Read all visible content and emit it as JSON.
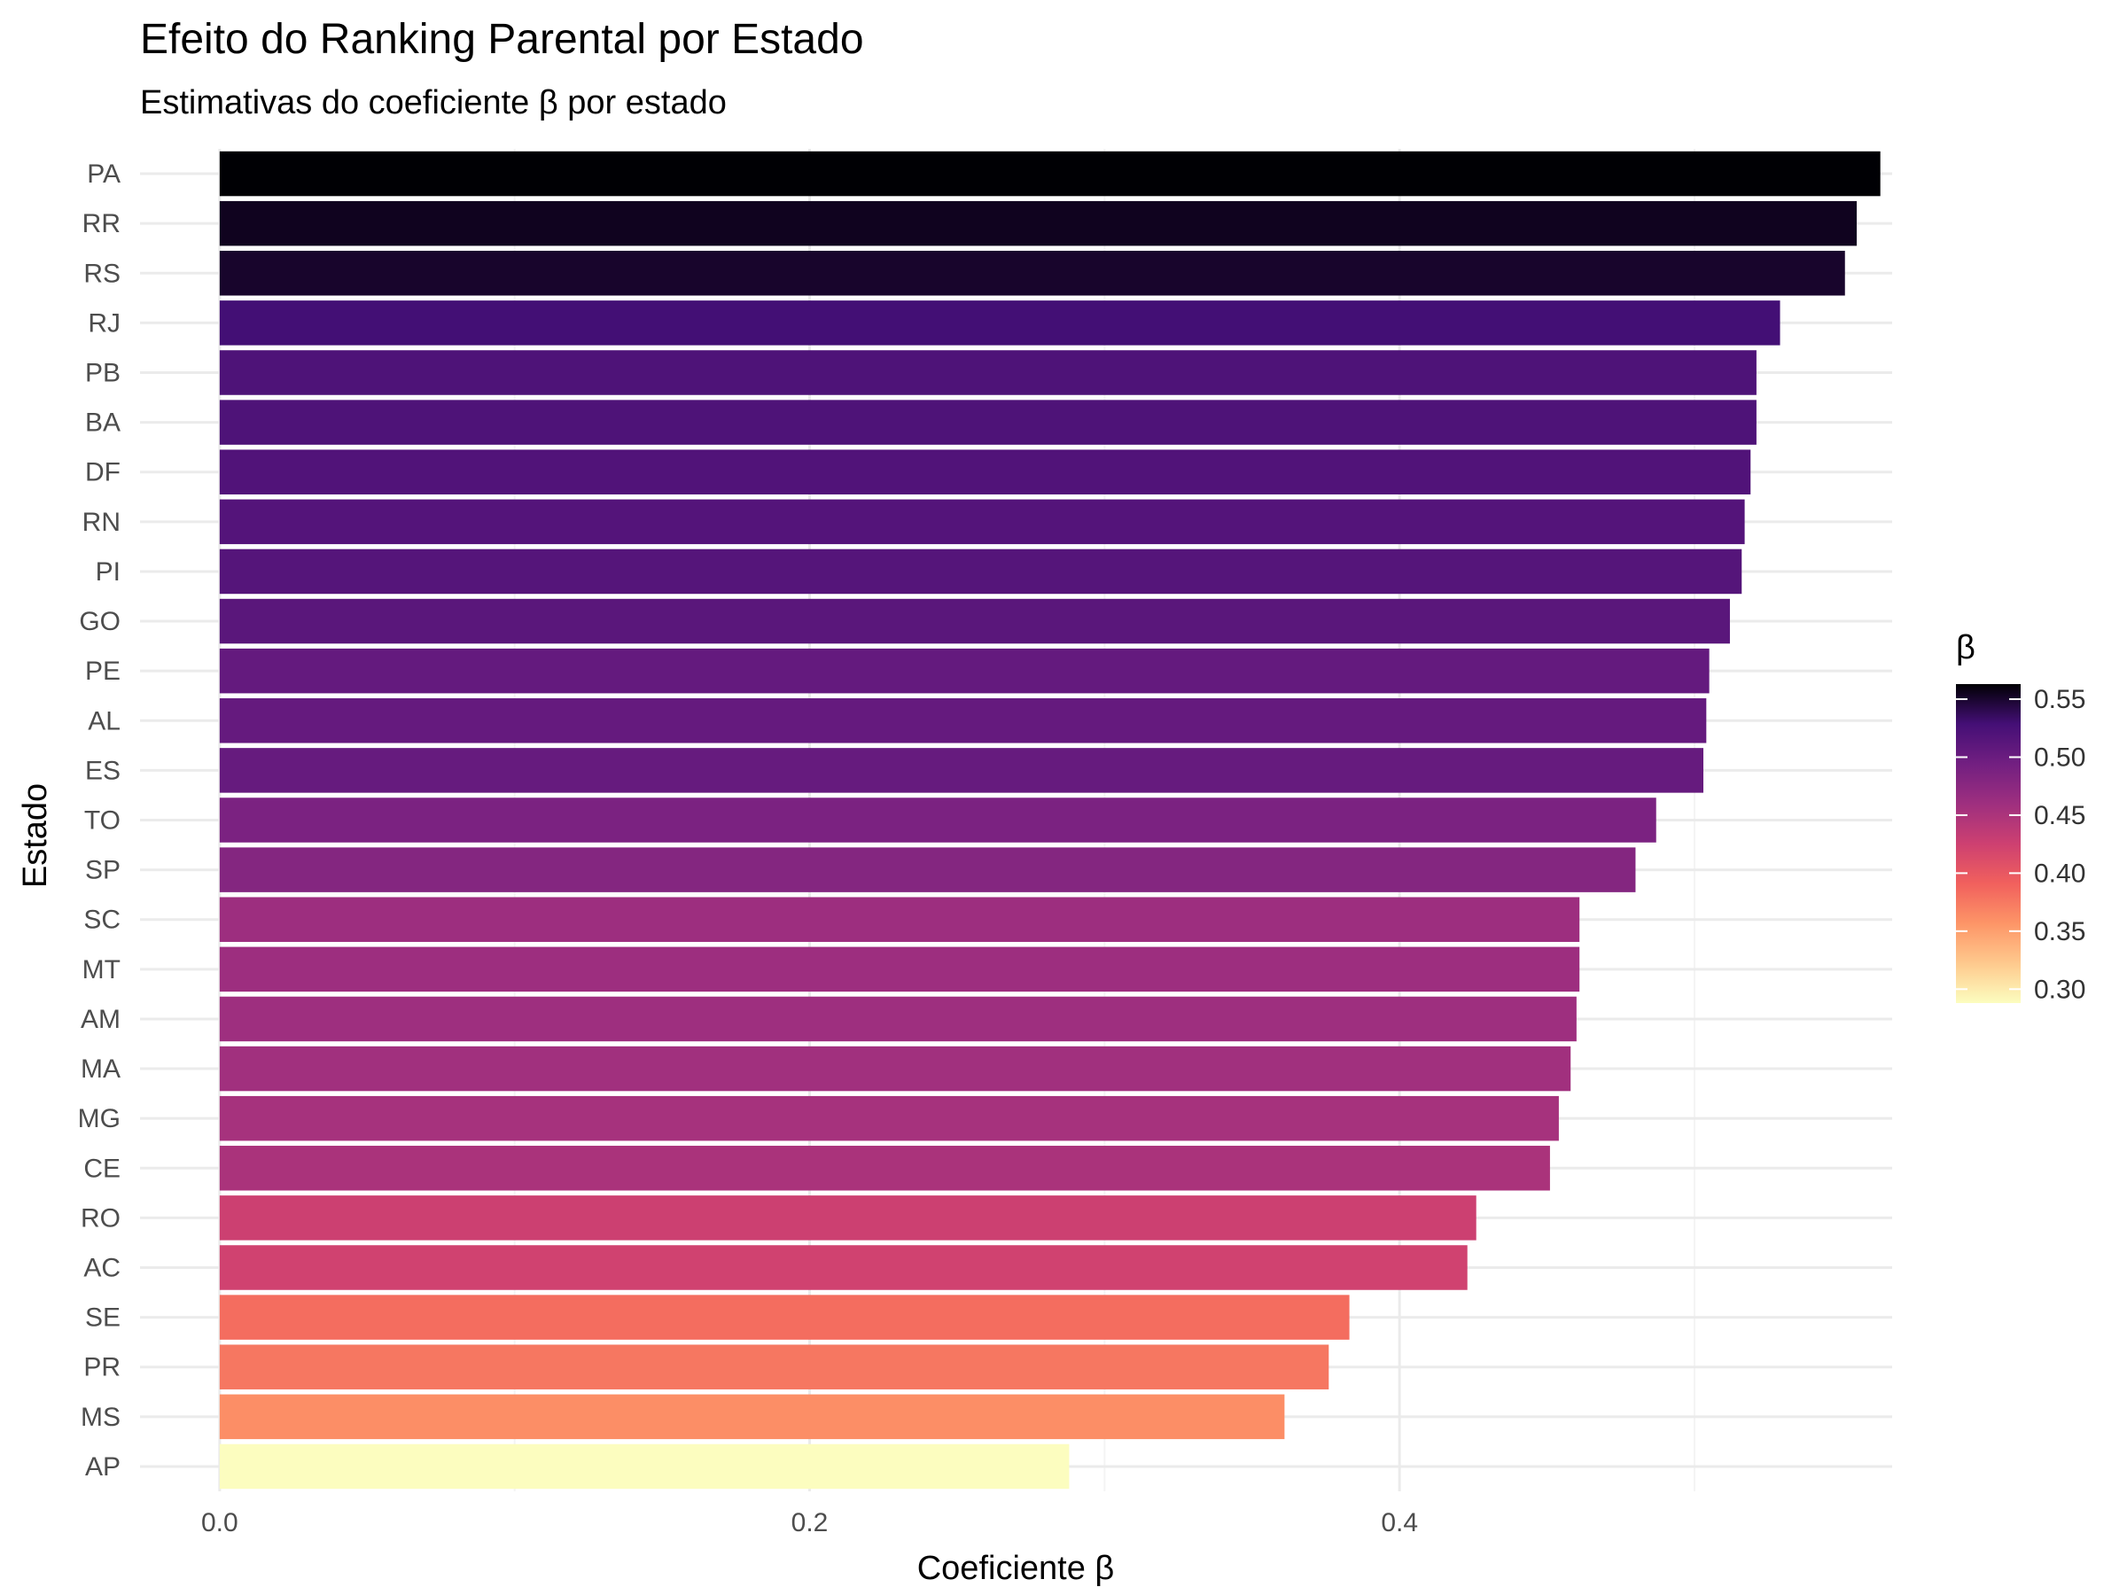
{
  "chart_data": {
    "type": "bar",
    "orientation": "horizontal",
    "title": "Efeito do Ranking Parental por Estado",
    "subtitle": "Estimativas do coeficiente β por estado",
    "xlabel": "Coeficiente β",
    "ylabel": "Estado",
    "xlim": [
      -0.027,
      0.567
    ],
    "xticks": [
      "0.0",
      "0.2",
      "0.4"
    ],
    "grid": true,
    "legend": {
      "title": "β",
      "placement": "right",
      "ticks": [
        "0.55",
        "0.50",
        "0.45",
        "0.40",
        "0.35",
        "0.30"
      ],
      "tick_values": [
        0.55,
        0.5,
        0.45,
        0.4,
        0.35,
        0.3
      ],
      "range": [
        0.288,
        0.563
      ],
      "palette": "magma-reversed"
    },
    "categories": [
      "PA",
      "RR",
      "RS",
      "RJ",
      "PB",
      "BA",
      "DF",
      "RN",
      "PI",
      "GO",
      "PE",
      "AL",
      "ES",
      "TO",
      "SP",
      "SC",
      "MT",
      "AM",
      "MA",
      "MG",
      "CE",
      "RO",
      "AC",
      "SE",
      "PR",
      "MS",
      "AP"
    ],
    "values": [
      0.563,
      0.555,
      0.551,
      0.529,
      0.521,
      0.521,
      0.519,
      0.517,
      0.516,
      0.512,
      0.505,
      0.504,
      0.503,
      0.487,
      0.48,
      0.461,
      0.461,
      0.46,
      0.458,
      0.454,
      0.451,
      0.426,
      0.423,
      0.383,
      0.376,
      0.361,
      0.288
    ]
  }
}
